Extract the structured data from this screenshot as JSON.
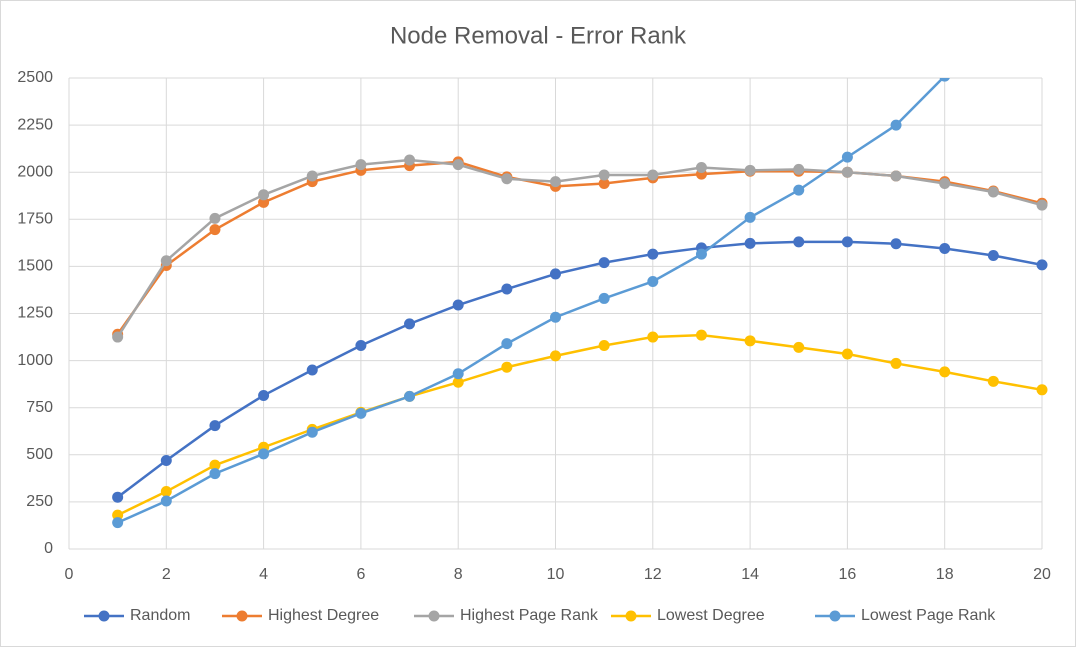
{
  "chart_data": {
    "type": "line",
    "title": "Node Removal - Error Rank",
    "x": [
      1,
      2,
      3,
      4,
      5,
      6,
      7,
      8,
      9,
      10,
      11,
      12,
      13,
      14,
      15,
      16,
      17,
      18,
      19,
      20
    ],
    "series": [
      {
        "name": "Random",
        "color": "#4472c4",
        "values": [
          275,
          470,
          655,
          815,
          950,
          1080,
          1195,
          1295,
          1380,
          1460,
          1520,
          1565,
          1598,
          1622,
          1630,
          1630,
          1620,
          1595,
          1558,
          1508
        ]
      },
      {
        "name": "Highest Degree",
        "color": "#ed7d31",
        "values": [
          1140,
          1505,
          1695,
          1840,
          1950,
          2010,
          2035,
          2055,
          1975,
          1925,
          1940,
          1970,
          1990,
          2005,
          2005,
          2000,
          1980,
          1950,
          1900,
          1835
        ]
      },
      {
        "name": "Highest Page Rank",
        "color": "#a5a5a5",
        "values": [
          1125,
          1530,
          1755,
          1880,
          1980,
          2040,
          2065,
          2040,
          1965,
          1950,
          1985,
          1985,
          2025,
          2010,
          2015,
          2000,
          1980,
          1940,
          1895,
          1825
        ]
      },
      {
        "name": "Lowest Degree",
        "color": "#ffc000",
        "values": [
          180,
          305,
          445,
          540,
          635,
          725,
          810,
          885,
          965,
          1025,
          1080,
          1125,
          1135,
          1105,
          1070,
          1035,
          985,
          940,
          890,
          845
        ]
      },
      {
        "name": "Lowest Page Rank",
        "color": "#5b9bd5",
        "values": [
          140,
          255,
          400,
          505,
          620,
          720,
          810,
          930,
          1090,
          1230,
          1330,
          1420,
          1565,
          1760,
          1905,
          2080,
          2250,
          2510,
          null,
          null
        ]
      }
    ],
    "xlim": [
      0,
      20
    ],
    "xticks": [
      0,
      2,
      4,
      6,
      8,
      10,
      12,
      14,
      16,
      18,
      20
    ],
    "ylim": [
      0,
      2500
    ],
    "yticks": [
      0,
      250,
      500,
      750,
      1000,
      1250,
      1500,
      1750,
      2000,
      2250,
      2500
    ],
    "grid": true,
    "legend": "bottom"
  }
}
